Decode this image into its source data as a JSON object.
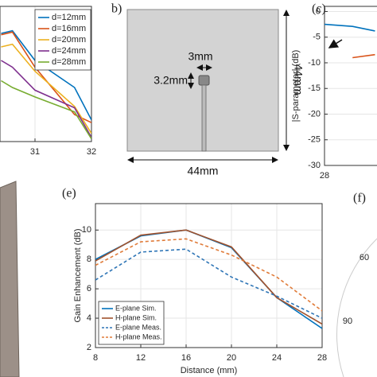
{
  "chart_data": [
    {
      "type": "line",
      "xlim": [
        30.38,
        32
      ],
      "xticks": [
        31,
        32
      ],
      "ylim": [
        0,
        10
      ],
      "yticks": [],
      "grid": true,
      "legend": "upper left",
      "x": [
        30.4,
        30.6,
        31,
        31.7,
        32
      ],
      "series": [
        {
          "name": "d=12mm",
          "color": "#0072bd",
          "values": [
            8.0,
            8.2,
            6.0,
            4.0,
            1.6
          ]
        },
        {
          "name": "d=16mm",
          "color": "#d95319",
          "values": [
            7.9,
            8.1,
            5.5,
            2.0,
            1.4
          ]
        },
        {
          "name": "d=20mm",
          "color": "#edb120",
          "values": [
            7.0,
            7.2,
            5.2,
            2.6,
            0.6
          ]
        },
        {
          "name": "d=24mm",
          "color": "#7e2f8e",
          "values": [
            6.0,
            5.5,
            3.8,
            2.5,
            0.3
          ]
        },
        {
          "name": "d=28mm",
          "color": "#77ac30",
          "values": [
            4.5,
            4.0,
            3.3,
            2.2,
            0.2
          ]
        }
      ]
    },
    {
      "type": "line",
      "panel_label": "(c)",
      "y_label": "|S-parameter| (dB)",
      "xlim": [
        28,
        32
      ],
      "xticks": [
        28
      ],
      "ylim": [
        -30,
        1
      ],
      "yticks": [
        0,
        -5,
        -10,
        -15,
        -20,
        -25,
        -30
      ],
      "grid": true,
      "series": [
        {
          "color": "#0072bd",
          "x": [
            28,
            28.5,
            28.9
          ],
          "values": [
            -2.5,
            -2.9,
            -3.8
          ]
        },
        {
          "color": "#d95319",
          "x": [
            28.5,
            28.9
          ],
          "values": [
            -9.0,
            -8.4
          ]
        }
      ]
    },
    {
      "type": "line",
      "panel_label": "(e)",
      "x_label": "Distance (mm)",
      "y_label": "Gain Enhancement (dB)",
      "xlim": [
        8,
        28
      ],
      "xticks": [
        8,
        12,
        16,
        20,
        24,
        28
      ],
      "ylim": [
        2,
        11.8
      ],
      "yticks": [
        2,
        4,
        6,
        8,
        10
      ],
      "grid": true,
      "legend": "lower left",
      "x": [
        8,
        12,
        16,
        20,
        24,
        28
      ],
      "series": [
        {
          "name": "E-plane Sim.",
          "color": "#0072bd",
          "style": "solid",
          "values": [
            8.0,
            9.6,
            10.0,
            8.8,
            5.4,
            3.3
          ]
        },
        {
          "name": "H-plane Sim.",
          "color": "#a0522d",
          "style": "solid",
          "values": [
            7.9,
            9.65,
            10.0,
            8.85,
            5.4,
            3.6
          ]
        },
        {
          "name": "E-plane Meas.",
          "color": "#2e75b6",
          "style": "dashed",
          "values": [
            6.6,
            8.5,
            8.7,
            6.8,
            5.5,
            4.0
          ]
        },
        {
          "name": "H-plane Meas.",
          "color": "#e07b39",
          "style": "dashed",
          "values": [
            7.6,
            9.2,
            9.4,
            8.3,
            6.8,
            4.5
          ]
        }
      ]
    }
  ],
  "diagram": {
    "panel_label": "b)",
    "width_label": "3mm",
    "height_label": "3.2mm",
    "side_label": "44mm",
    "bottom_label": "44mm"
  },
  "polar": {
    "panel_label": "(f)",
    "angle_labels": [
      "60",
      "90"
    ]
  }
}
